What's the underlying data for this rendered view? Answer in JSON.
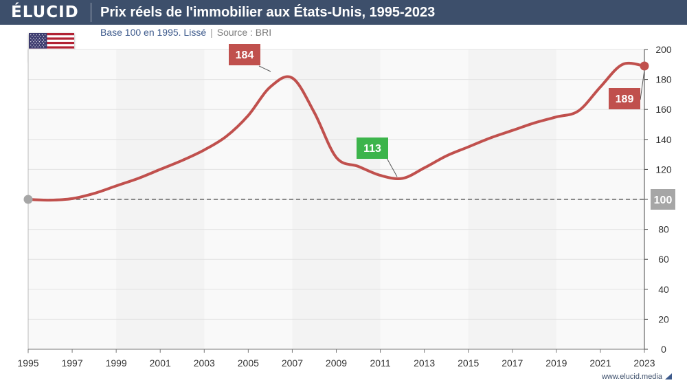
{
  "brand": {
    "logo": "ÉLUCID",
    "footer": "www.elucid.media"
  },
  "header": {
    "title": "Prix réels de l'immobilier aux États-Unis, 1995-2023",
    "subtitle": "Base 100 en 1995. Lissé",
    "source": "Source : BRI"
  },
  "flag_icon": "us-flag-icon",
  "colors": {
    "header_bg": "#3d4f6b",
    "line": "#c0504d",
    "max_label": "#c0504d",
    "min_label": "#3cb44b",
    "baseline_label": "#a6a6a6",
    "band": "#f3f3f3",
    "plot_bg": "#f9f9f9"
  },
  "chart_data": {
    "type": "line",
    "x": [
      1995,
      1996,
      1997,
      1998,
      1999,
      2000,
      2001,
      2002,
      2003,
      2004,
      2005,
      2006,
      2007,
      2008,
      2009,
      2010,
      2011,
      2012,
      2013,
      2014,
      2015,
      2016,
      2017,
      2018,
      2019,
      2020,
      2021,
      2022,
      2023
    ],
    "series": [
      {
        "values": [
          100,
          99.5,
          100.5,
          104,
          109,
          114,
          120,
          126,
          133,
          142,
          156,
          175,
          181,
          158,
          128,
          122,
          116,
          114,
          121,
          129,
          135,
          141,
          146,
          151,
          155,
          159,
          175,
          190,
          189
        ]
      }
    ],
    "xticks": [
      "1995",
      "1997",
      "1999",
      "2001",
      "2003",
      "2005",
      "2007",
      "2009",
      "2011",
      "2013",
      "2015",
      "2017",
      "2019",
      "2021",
      "2023"
    ],
    "yticks": [
      "0",
      "20",
      "40",
      "60",
      "80",
      "100",
      "120",
      "140",
      "160",
      "180",
      "200"
    ],
    "ylim": [
      0,
      200
    ],
    "xlim": [
      1995,
      2023
    ],
    "baseline": {
      "value": 100,
      "label": "100"
    },
    "annotations": [
      {
        "label": "184",
        "x": 2006,
        "y": 184,
        "kind": "max"
      },
      {
        "label": "113",
        "x": 2011.7,
        "y": 113,
        "kind": "min"
      },
      {
        "label": "189",
        "x": 2023,
        "y": 189,
        "kind": "last"
      }
    ],
    "grid": true,
    "legend": "none"
  }
}
